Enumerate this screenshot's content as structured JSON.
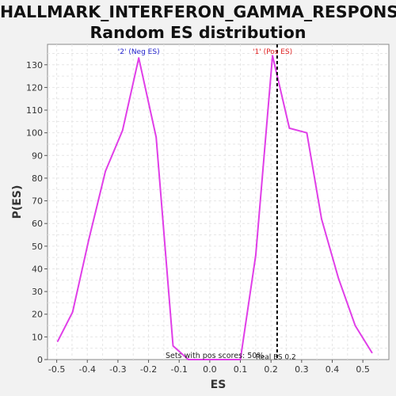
{
  "title": {
    "line1": "HALLMARK_INTERFERON_GAMMA_RESPONSE:",
    "line2": "Random ES distribution"
  },
  "colors": {
    "series": "#e03ee8",
    "neg_label": "#2222cc",
    "pos_label": "#e02020",
    "real_es_line": "#000000",
    "plot_bg": "#ffffff",
    "grid": "#e6e6e6"
  },
  "chart_data": {
    "type": "line",
    "title": "HALLMARK_INTERFERON_GAMMA_RESPONSE: Random ES distribution",
    "xlabel": "ES",
    "ylabel": "P(ES)",
    "xlim": [
      -0.53,
      0.585
    ],
    "ylim": [
      0,
      139
    ],
    "grid": true,
    "xticks": [
      -0.5,
      -0.4,
      -0.3,
      -0.2,
      -0.1,
      0.0,
      0.1,
      0.2,
      0.3,
      0.4,
      0.5
    ],
    "xtick_labels": [
      "-0.5",
      "-0.4",
      "-0.3",
      "-0.2",
      "-0.1",
      "0.0",
      "0.1",
      "0.2",
      "0.3",
      "0.4",
      "0.5"
    ],
    "yticks": [
      0,
      10,
      20,
      30,
      40,
      50,
      60,
      70,
      80,
      90,
      100,
      110,
      120,
      130
    ],
    "ytick_labels": [
      "0",
      "10",
      "20",
      "30",
      "40",
      "50",
      "60",
      "70",
      "80",
      "90",
      "100",
      "110",
      "120",
      "130"
    ],
    "series": [
      {
        "x": [
          -0.497,
          -0.448,
          -0.395,
          -0.341,
          -0.285,
          -0.232,
          -0.175,
          -0.12,
          -0.07,
          0.1,
          0.15,
          0.205,
          0.26,
          0.317,
          0.365,
          0.42,
          0.475,
          0.53
        ],
        "y": [
          8,
          21,
          53,
          83,
          101,
          133,
          98,
          6,
          0,
          0,
          46,
          134,
          102,
          100,
          62,
          36,
          15,
          3
        ]
      }
    ],
    "annotations": {
      "neg_label": "'2' (Neg ES)",
      "neg_label_x": -0.232,
      "pos_label": "'1' (Pos ES)",
      "pos_label_x": 0.205,
      "real_es_x": 0.22,
      "real_es_label": "Real ES 0.2",
      "pos_scores_label": "Sets with pos scores: 50%"
    }
  }
}
